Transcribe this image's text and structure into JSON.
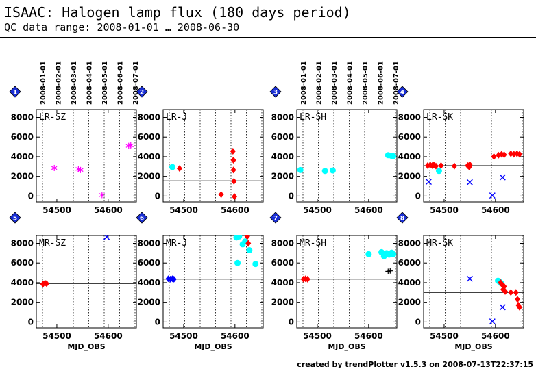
{
  "header": {
    "title": "ISAAC: Halogen lamp flux (180 days period)",
    "subtitle": "QC data range: 2008-01-01 … 2008-06-30"
  },
  "footer": "created by trendPlotter v1.5.3 on 2008-07-13T22:37:15",
  "chart_data": [
    {
      "type": "scatter",
      "panel_number": "1",
      "title": "LR-SZ",
      "xlim": [
        54460,
        54655
      ],
      "ylim": [
        -600,
        8800
      ],
      "xticks": [
        54500,
        54600
      ],
      "yticks": [
        0,
        2000,
        4000,
        6000,
        8000
      ],
      "top_date_labels": [
        "2008-01-01",
        "2008-02-01",
        "2008-03-01",
        "2008-04-01",
        "2008-05-01",
        "2008-06-01",
        "2008-07-01"
      ],
      "reference_line": null,
      "series": [
        {
          "marker": "asterisk",
          "color": "#ff00ff",
          "points": [
            [
              54495,
              2850
            ],
            [
              54542,
              2750
            ],
            [
              54546,
              2650
            ],
            [
              54588,
              100
            ],
            [
              54640,
              5100
            ],
            [
              54644,
              5150
            ]
          ]
        }
      ]
    },
    {
      "type": "scatter",
      "panel_number": "2",
      "title": "LR-J",
      "xlim": [
        54460,
        54655
      ],
      "ylim": [
        -600,
        8800
      ],
      "xticks": [
        54500,
        54600
      ],
      "yticks": [
        0,
        2000,
        4000,
        6000,
        8000
      ],
      "top_date_labels": [],
      "reference_line": 1550,
      "series": [
        {
          "marker": "circle",
          "color": "#00ffff",
          "points": [
            [
              54478,
              2950
            ]
          ]
        },
        {
          "marker": "diamond",
          "color": "#ff0000",
          "points": [
            [
              54492,
              2800
            ],
            [
              54573,
              150
            ],
            [
              54596,
              4550
            ],
            [
              54597,
              3650
            ],
            [
              54597,
              2650
            ],
            [
              54598,
              1500
            ],
            [
              54599,
              -50
            ]
          ]
        }
      ]
    },
    {
      "type": "scatter",
      "panel_number": "3",
      "title": "LR-SH",
      "xlim": [
        54460,
        54655
      ],
      "ylim": [
        -600,
        8800
      ],
      "xticks": [
        54500,
        54600
      ],
      "yticks": [
        0,
        2000,
        4000,
        6000,
        8000
      ],
      "top_date_labels": [
        "2008-01-01",
        "2008-02-01",
        "2008-03-01",
        "2008-04-01",
        "2008-05-01",
        "2008-06-01",
        "2008-07-01"
      ],
      "reference_line": null,
      "series": [
        {
          "marker": "circle",
          "color": "#00ffff",
          "points": [
            [
              54467,
              2650
            ],
            [
              54515,
              2550
            ],
            [
              54530,
              2600
            ],
            [
              54638,
              4150
            ],
            [
              54644,
              4100
            ],
            [
              54648,
              4050
            ]
          ]
        }
      ]
    },
    {
      "type": "scatter",
      "panel_number": "4",
      "title": "LR-SK",
      "xlim": [
        54460,
        54655
      ],
      "ylim": [
        -600,
        8800
      ],
      "xticks": [
        54500,
        54600
      ],
      "yticks": [
        0,
        2000,
        4000,
        6000,
        8000
      ],
      "top_date_labels": [],
      "reference_line": 3100,
      "series": [
        {
          "marker": "diamond",
          "color": "#ff0000",
          "points": [
            [
              54468,
              3100
            ],
            [
              54473,
              3150
            ],
            [
              54477,
              3100
            ],
            [
              54480,
              3150
            ],
            [
              54484,
              3050
            ],
            [
              54494,
              3100
            ],
            [
              54520,
              3050
            ],
            [
              54546,
              3100
            ],
            [
              54549,
              2950
            ],
            [
              54550,
              3200
            ],
            [
              54597,
              4000
            ],
            [
              54606,
              4150
            ],
            [
              54612,
              4250
            ],
            [
              54617,
              4200
            ],
            [
              54630,
              4300
            ],
            [
              54636,
              4250
            ],
            [
              54642,
              4300
            ],
            [
              54647,
              4250
            ]
          ]
        },
        {
          "marker": "circle",
          "color": "#00ffff",
          "points": [
            [
              54490,
              2550
            ]
          ]
        },
        {
          "marker": "x",
          "color": "#0000ff",
          "points": [
            [
              54470,
              1450
            ],
            [
              54550,
              1400
            ],
            [
              54594,
              50
            ],
            [
              54614,
              1900
            ]
          ]
        }
      ]
    },
    {
      "type": "scatter",
      "panel_number": "5",
      "title": "MR-SZ",
      "xlim": [
        54460,
        54655
      ],
      "ylim": [
        -600,
        8800
      ],
      "xticks": [
        54500,
        54600
      ],
      "yticks": [
        0,
        2000,
        4000,
        6000,
        8000
      ],
      "top_date_labels": [],
      "reference_line": 3900,
      "series": [
        {
          "marker": "diamond",
          "color": "#ff0000",
          "points": [
            [
              54473,
              3850
            ],
            [
              54477,
              3950
            ],
            [
              54480,
              3900
            ]
          ]
        },
        {
          "marker": "x",
          "color": "#0000ff",
          "points": [
            [
              54597,
              8650
            ]
          ]
        }
      ]
    },
    {
      "type": "scatter",
      "panel_number": "6",
      "title": "MR-J",
      "xlim": [
        54460,
        54655
      ],
      "ylim": [
        -600,
        8800
      ],
      "xticks": [
        54500,
        54600
      ],
      "yticks": [
        0,
        2000,
        4000,
        6000,
        8000
      ],
      "top_date_labels": [],
      "reference_line": 4350,
      "series": [
        {
          "marker": "diamond",
          "color": "#0000ff",
          "points": [
            [
              54470,
              4400
            ],
            [
              54474,
              4350
            ],
            [
              54478,
              4400
            ],
            [
              54481,
              4350
            ]
          ]
        },
        {
          "marker": "circle",
          "color": "#00ffff",
          "points": [
            [
              54603,
              8600
            ],
            [
              54608,
              8700
            ],
            [
              54615,
              7900
            ],
            [
              54620,
              8200
            ],
            [
              54628,
              7300
            ],
            [
              54640,
              5900
            ],
            [
              54605,
              6000
            ]
          ]
        },
        {
          "marker": "diamond",
          "color": "#ff0000",
          "points": [
            [
              54624,
              8700
            ],
            [
              54626,
              8000
            ]
          ]
        }
      ]
    },
    {
      "type": "scatter",
      "panel_number": "7",
      "title": "MR-SH",
      "xlim": [
        54460,
        54655
      ],
      "ylim": [
        -600,
        8800
      ],
      "xticks": [
        54500,
        54600
      ],
      "yticks": [
        0,
        2000,
        4000,
        6000,
        8000
      ],
      "top_date_labels": [],
      "reference_line": 4350,
      "series": [
        {
          "marker": "diamond",
          "color": "#ff0000",
          "points": [
            [
              54473,
              4350
            ],
            [
              54477,
              4400
            ],
            [
              54481,
              4350
            ]
          ]
        },
        {
          "marker": "circle",
          "color": "#00ffff",
          "points": [
            [
              54600,
              6900
            ],
            [
              54625,
              7100
            ],
            [
              54630,
              6700
            ],
            [
              54635,
              7000
            ],
            [
              54640,
              6850
            ],
            [
              54645,
              7050
            ],
            [
              54648,
              6900
            ]
          ]
        },
        {
          "marker": "plus",
          "color": "#000000",
          "points": [
            [
              54638,
              5150
            ],
            [
              54642,
              5200
            ]
          ]
        }
      ]
    },
    {
      "type": "scatter",
      "panel_number": "8",
      "title": "MR-SK",
      "xlim": [
        54460,
        54655
      ],
      "ylim": [
        -600,
        8800
      ],
      "xticks": [
        54500,
        54600
      ],
      "yticks": [
        0,
        2000,
        4000,
        6000,
        8000
      ],
      "top_date_labels": [],
      "reference_line": 3000,
      "series": [
        {
          "marker": "circle",
          "color": "#00ffff",
          "points": [
            [
              54605,
              4200
            ],
            [
              54608,
              4100
            ],
            [
              54611,
              3950
            ]
          ]
        },
        {
          "marker": "diamond",
          "color": "#ff0000",
          "points": [
            [
              54610,
              4000
            ],
            [
              54613,
              3800
            ],
            [
              54615,
              3300
            ],
            [
              54617,
              3600
            ],
            [
              54619,
              3100
            ],
            [
              54630,
              3000
            ],
            [
              54640,
              3000
            ],
            [
              54643,
              2300
            ],
            [
              54645,
              1700
            ],
            [
              54647,
              1500
            ]
          ]
        },
        {
          "marker": "x",
          "color": "#0000ff",
          "points": [
            [
              54550,
              4400
            ],
            [
              54594,
              50
            ],
            [
              54614,
              1500
            ]
          ]
        }
      ]
    }
  ],
  "xlabel": "MJD_OBS"
}
